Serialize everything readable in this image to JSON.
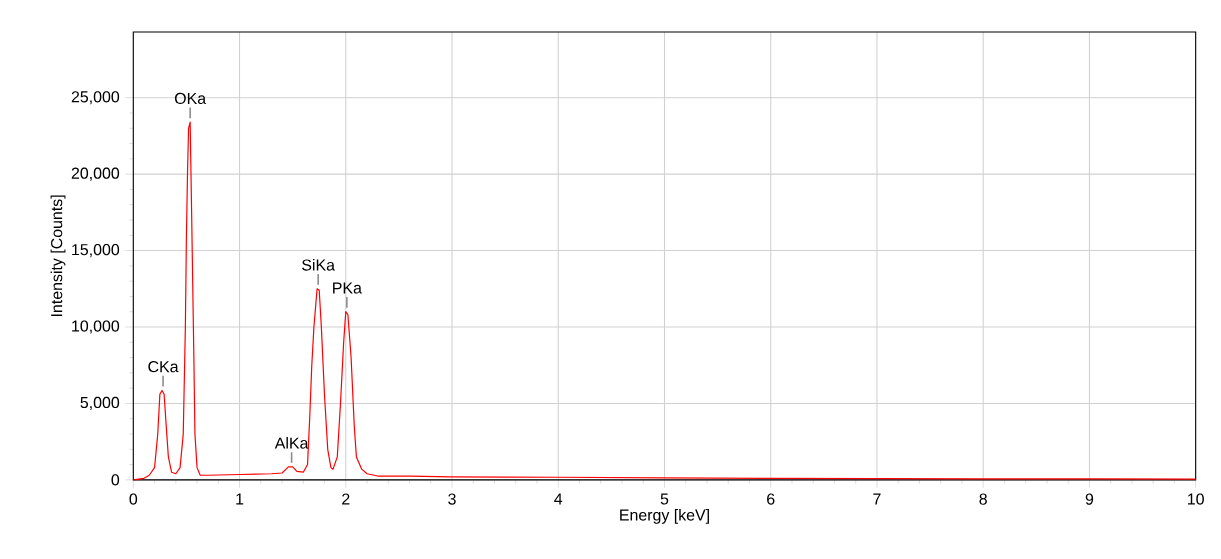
{
  "chart_data": {
    "type": "line",
    "xlabel": "Energy [keV]",
    "ylabel": "Intensity [Counts]",
    "x": [
      0,
      0.1,
      0.15,
      0.2,
      0.23,
      0.25,
      0.27,
      0.29,
      0.31,
      0.33,
      0.36,
      0.4,
      0.44,
      0.47,
      0.49,
      0.5,
      0.51,
      0.52,
      0.535,
      0.55,
      0.57,
      0.58,
      0.6,
      0.63,
      0.7,
      1.0,
      1.3,
      1.4,
      1.46,
      1.5,
      1.54,
      1.6,
      1.64,
      1.66,
      1.68,
      1.7,
      1.73,
      1.75,
      1.77,
      1.8,
      1.83,
      1.86,
      1.88,
      1.92,
      1.95,
      1.98,
      2.0,
      2.02,
      2.05,
      2.08,
      2.1,
      2.15,
      2.2,
      2.3,
      2.6,
      3.0,
      4.0,
      5.0,
      6.0,
      7.0,
      8.0,
      9.0,
      10.0
    ],
    "series": [
      {
        "color": "#ff0000",
        "values": [
          0,
          100,
          300,
          800,
          3000,
          5600,
          5850,
          5600,
          3500,
          1500,
          500,
          400,
          800,
          3000,
          10000,
          16000,
          20000,
          23000,
          23400,
          17000,
          8000,
          3000,
          800,
          300,
          300,
          350,
          400,
          450,
          850,
          850,
          550,
          500,
          1000,
          4000,
          7500,
          10000,
          12500,
          12400,
          10000,
          5500,
          2000,
          800,
          700,
          1500,
          5000,
          9000,
          11000,
          10800,
          8000,
          3500,
          1500,
          700,
          400,
          250,
          250,
          200,
          170,
          130,
          100,
          80,
          70,
          60,
          50
        ]
      }
    ],
    "annotations": [
      {
        "text": "CKa",
        "x": 0.28,
        "y": 5850
      },
      {
        "text": "OKa",
        "x": 0.535,
        "y": 23400
      },
      {
        "text": "AlKa",
        "x": 1.49,
        "y": 850
      },
      {
        "text": "SiKa",
        "x": 1.74,
        "y": 12500
      },
      {
        "text": "PKa",
        "x": 2.01,
        "y": 11000
      }
    ],
    "xlim": [
      0,
      10
    ],
    "ylim": [
      0,
      29300
    ],
    "xticks": [
      0,
      1,
      2,
      3,
      4,
      5,
      6,
      7,
      8,
      9,
      10
    ],
    "yticks": [
      0,
      {
        "value": 5000,
        "label": "5,000"
      },
      {
        "value": 10000,
        "label": "10,000"
      },
      {
        "value": 15000,
        "label": "15,000"
      },
      {
        "value": 20000,
        "label": "20,000"
      },
      {
        "value": 25000,
        "label": "25,000"
      }
    ],
    "grid": true,
    "marker": "none",
    "line_style": "solid"
  }
}
